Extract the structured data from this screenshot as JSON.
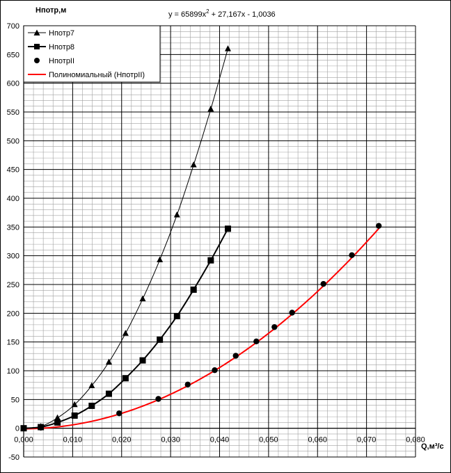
{
  "chart_data": {
    "type": "line",
    "title": "",
    "ylabel": "Hпотр,м",
    "xlabel": "Q,м³/с",
    "equation": {
      "prefix": "y = 65899x",
      "sup": "2",
      "suffix": " + 27,167x - 1,0036"
    },
    "xlim": [
      0.0,
      0.08
    ],
    "ylim": [
      -50,
      700
    ],
    "x_ticks": [
      0.0,
      0.01,
      0.02,
      0.03,
      0.04,
      0.05,
      0.06,
      0.07,
      0.08
    ],
    "x_tick_labels": [
      "0,000",
      "0,010",
      "0,020",
      "0,030",
      "0,040",
      "0,050",
      "0,060",
      "0,070",
      "0,080"
    ],
    "y_ticks": [
      -50,
      0,
      50,
      100,
      150,
      200,
      250,
      300,
      350,
      400,
      450,
      500,
      550,
      600,
      650,
      700
    ],
    "y_tick_labels": [
      "-50",
      "0",
      "50",
      "100",
      "150",
      "200",
      "250",
      "300",
      "350",
      "400",
      "450",
      "500",
      "550",
      "600",
      "650",
      "700"
    ],
    "grid": true,
    "legend_position": "top-left",
    "series": [
      {
        "name": "Hпотр7",
        "marker": "triangle",
        "color": "#000000",
        "line_width": 1,
        "x": [
          0.0,
          0.0035,
          0.0069,
          0.0104,
          0.0139,
          0.0174,
          0.0208,
          0.0243,
          0.0278,
          0.0313,
          0.0347,
          0.0382,
          0.0417
        ],
        "y": [
          0,
          3,
          18,
          41,
          74,
          115,
          165,
          225,
          293,
          371,
          458,
          555,
          660
        ]
      },
      {
        "name": "Hпотр8",
        "marker": "square",
        "color": "#000000",
        "line_width": 2,
        "x": [
          0.0,
          0.0035,
          0.0069,
          0.0104,
          0.0139,
          0.0174,
          0.0208,
          0.0243,
          0.0278,
          0.0313,
          0.0347,
          0.0382,
          0.0417
        ],
        "y": [
          0,
          2,
          10,
          22,
          39,
          60,
          87,
          118,
          154,
          195,
          241,
          292,
          347
        ]
      },
      {
        "name": "HпотрII",
        "marker": "circle",
        "color": "#000000",
        "line_width": 0,
        "x": [
          0.0,
          0.0035,
          0.0195,
          0.0275,
          0.0335,
          0.039,
          0.0433,
          0.0475,
          0.0512,
          0.0548,
          0.0612,
          0.067,
          0.0725
        ],
        "y": [
          0,
          1,
          26,
          51,
          76,
          101,
          126,
          151,
          176,
          201,
          251,
          301,
          352
        ]
      }
    ],
    "trendline": {
      "name": "Полиномиальный (HпотрII)",
      "color": "#ff0000",
      "coefficients": [
        65899,
        27.167,
        -1.0036
      ],
      "x_range": [
        0.0,
        0.0725
      ]
    }
  }
}
